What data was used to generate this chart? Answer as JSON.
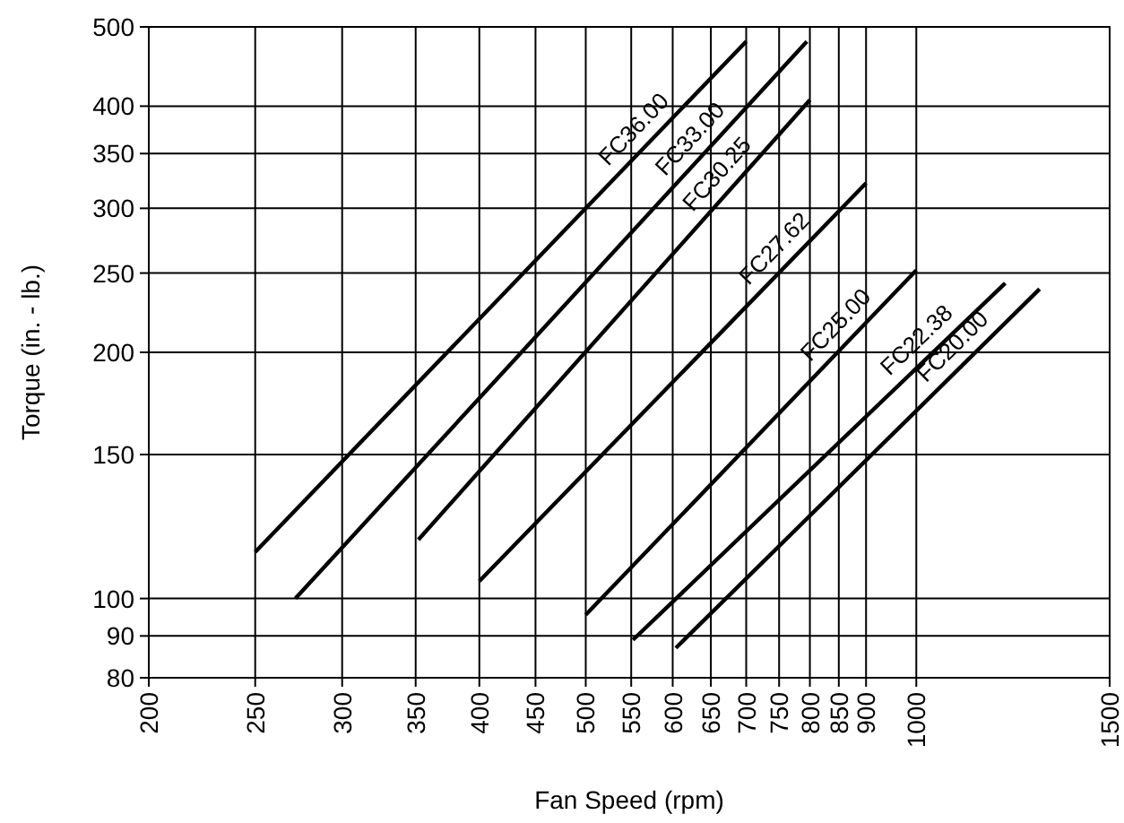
{
  "chart_data": {
    "type": "line",
    "xlabel": "Fan Speed (rpm)",
    "ylabel": "Torque (in. - lb.)",
    "log": "xy",
    "grid": true,
    "marker": "none",
    "line_style": "solid",
    "xlim": [
      200,
      1500
    ],
    "xticks": [
      200,
      250,
      300,
      350,
      400,
      450,
      500,
      550,
      600,
      650,
      700,
      750,
      800,
      850,
      900,
      1000,
      1500
    ],
    "ylim": [
      80,
      500
    ],
    "yticks": [
      80,
      90,
      100,
      150,
      200,
      250,
      300,
      350,
      400,
      500
    ],
    "series": [
      {
        "name": "FC36.00",
        "color": "#000000",
        "x": [
          250,
          700
        ],
        "values": [
          114,
          480
        ]
      },
      {
        "name": "FC33.00",
        "color": "#000000",
        "x": [
          272,
          795
        ],
        "values": [
          100,
          480
        ]
      },
      {
        "name": "FC30.25",
        "color": "#000000",
        "x": [
          352,
          800
        ],
        "values": [
          118,
          407
        ]
      },
      {
        "name": "FC27.62",
        "color": "#000000",
        "x": [
          400,
          900
        ],
        "values": [
          105,
          322
        ]
      },
      {
        "name": "FC25.00",
        "color": "#000000",
        "x": [
          500,
          1000
        ],
        "values": [
          95.5,
          252
        ]
      },
      {
        "name": "FC22.38",
        "color": "#000000",
        "x": [
          552,
          1205
        ],
        "values": [
          89,
          243
        ]
      },
      {
        "name": "FC20.00",
        "color": "#000000",
        "x": [
          604,
          1295
        ],
        "values": [
          87,
          239
        ]
      }
    ]
  }
}
